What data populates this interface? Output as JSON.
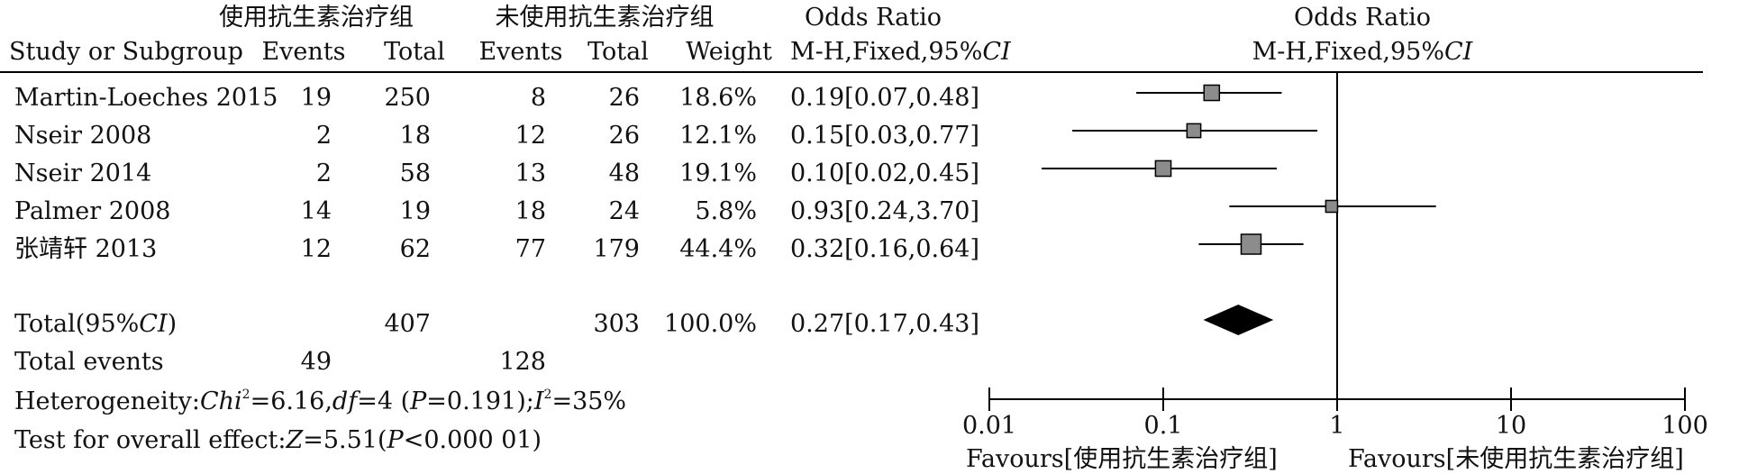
{
  "headers": {
    "group1": "使用抗生素治疗组",
    "group2": "未使用抗生素治疗组",
    "odds_ratio_col": "Odds Ratio",
    "odds_ratio_plot": "Odds Ratio",
    "study": "Study or Subgroup",
    "events1": "Events",
    "total1": "Total",
    "events2": "Events",
    "total2": "Total",
    "weight": "Weight",
    "method_col_prefix": "M-H,Fixed,95%",
    "method_col_ci": "CI",
    "method_plot_prefix": "M-H,Fixed,95%",
    "method_plot_ci": "CI"
  },
  "studies": [
    {
      "name": "Martin-Loeches 2015",
      "events1": "19",
      "total1": "250",
      "events2": "8",
      "total2": "26",
      "weight": "18.6%",
      "ci_text": "0.19[0.07,0.48]"
    },
    {
      "name": "Nseir 2008",
      "events1": "2",
      "total1": "18",
      "events2": "12",
      "total2": "26",
      "weight": "12.1%",
      "ci_text": "0.15[0.03,0.77]"
    },
    {
      "name": "Nseir 2014",
      "events1": "2",
      "total1": "58",
      "events2": "13",
      "total2": "48",
      "weight": "19.1%",
      "ci_text": "0.10[0.02,0.45]"
    },
    {
      "name": "Palmer 2008",
      "events1": "14",
      "total1": "19",
      "events2": "18",
      "total2": "24",
      "weight": "5.8%",
      "ci_text": "0.93[0.24,3.70]"
    },
    {
      "name": "张靖轩 2013",
      "events1": "12",
      "total1": "62",
      "events2": "77",
      "total2": "179",
      "weight": "44.4%",
      "ci_text": "0.32[0.16,0.64]"
    }
  ],
  "total": {
    "label_prefix": "Total(95%",
    "label_ci": "CI",
    "label_suffix": ")",
    "total1": "407",
    "total2": "303",
    "weight": "100.0%",
    "ci_text": "0.27[0.17,0.43]"
  },
  "total_events": {
    "label": "Total events",
    "events1": "49",
    "events2": "128"
  },
  "heterogeneity": {
    "lead": "Heterogeneity:",
    "chi_label": "Chi",
    "chi_sup": "2",
    "chi_value": "=6.16,",
    "df_label": "df",
    "df_value": "=4 (",
    "p_label": "P",
    "p_value": "=0.191);",
    "i_label": "I",
    "i_sup": "2",
    "i_value": "=35%"
  },
  "overall_effect": {
    "lead": "Test for overall effect:",
    "z_label": "Z",
    "z_value": "=5.51(",
    "p_label": "P",
    "p_value": "<0.000 01)"
  },
  "axis": {
    "tick_labels": [
      "0.01",
      "0.1",
      "1",
      "10",
      "100"
    ],
    "favours_left": "Favours[使用抗生素治疗组]",
    "favours_right": "Favours[未使用抗生素治疗组]"
  },
  "chart_data": {
    "type": "forest",
    "scale": "log",
    "xlim": [
      0.01,
      100
    ],
    "ticks": [
      0.01,
      0.1,
      1,
      10,
      100
    ],
    "reference_line": 1,
    "studies": [
      {
        "or": 0.19,
        "lower": 0.07,
        "upper": 0.48,
        "weight": 18.6
      },
      {
        "or": 0.15,
        "lower": 0.03,
        "upper": 0.77,
        "weight": 12.1
      },
      {
        "or": 0.1,
        "lower": 0.02,
        "upper": 0.45,
        "weight": 19.1
      },
      {
        "or": 0.93,
        "lower": 0.24,
        "upper": 3.7,
        "weight": 5.8
      },
      {
        "or": 0.32,
        "lower": 0.16,
        "upper": 0.64,
        "weight": 44.4
      }
    ],
    "pooled": {
      "or": 0.27,
      "lower": 0.17,
      "upper": 0.43
    },
    "colors": {
      "box": "#8c8c8c",
      "line": "#000000",
      "diamond": "#000000"
    }
  }
}
